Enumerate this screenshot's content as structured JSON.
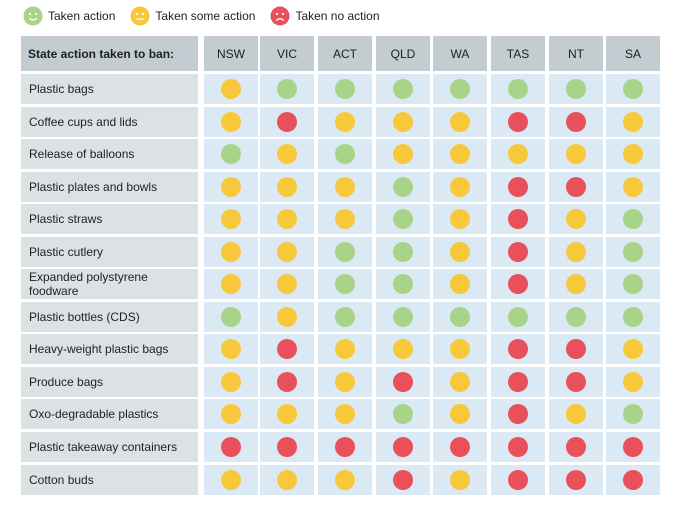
{
  "colors": {
    "green": "#a8d48a",
    "yellow": "#f7c93a",
    "red": "#e8505b",
    "header_bg": "#c3ccd0",
    "label_bg": "#dce1e3",
    "cell_bg": "#dbe9f5"
  },
  "legend": [
    {
      "key": "G",
      "label": "Taken action",
      "icon": "smiley-face-icon"
    },
    {
      "key": "Y",
      "label": "Taken some action",
      "icon": "neutral-face-icon"
    },
    {
      "key": "R",
      "label": "Taken no action",
      "icon": "sad-face-icon"
    }
  ],
  "chart_data": {
    "type": "table",
    "header_label": "State action taken to ban:",
    "columns": [
      "NSW",
      "VIC",
      "ACT",
      "QLD",
      "WA",
      "TAS",
      "NT",
      "SA"
    ],
    "rows": [
      {
        "label": "Plastic bags",
        "values": [
          "Y",
          "G",
          "G",
          "G",
          "G",
          "G",
          "G",
          "G"
        ]
      },
      {
        "label": "Coffee cups and lids",
        "values": [
          "Y",
          "R",
          "Y",
          "Y",
          "Y",
          "R",
          "R",
          "Y"
        ]
      },
      {
        "label": "Release of balloons",
        "values": [
          "G",
          "Y",
          "G",
          "Y",
          "Y",
          "Y",
          "Y",
          "Y"
        ]
      },
      {
        "label": "Plastic plates and bowls",
        "values": [
          "Y",
          "Y",
          "Y",
          "G",
          "Y",
          "R",
          "R",
          "Y"
        ]
      },
      {
        "label": "Plastic straws",
        "values": [
          "Y",
          "Y",
          "Y",
          "G",
          "Y",
          "R",
          "Y",
          "G"
        ]
      },
      {
        "label": "Plastic cutlery",
        "values": [
          "Y",
          "Y",
          "G",
          "G",
          "Y",
          "R",
          "Y",
          "G"
        ]
      },
      {
        "label": "Expanded polystyrene foodware",
        "values": [
          "Y",
          "Y",
          "G",
          "G",
          "Y",
          "R",
          "Y",
          "G"
        ]
      },
      {
        "label": "Plastic bottles (CDS)",
        "values": [
          "G",
          "Y",
          "G",
          "G",
          "G",
          "G",
          "G",
          "G"
        ]
      },
      {
        "label": "Heavy-weight plastic bags",
        "values": [
          "Y",
          "R",
          "Y",
          "Y",
          "Y",
          "R",
          "R",
          "Y"
        ]
      },
      {
        "label": "Produce bags",
        "values": [
          "Y",
          "R",
          "Y",
          "R",
          "Y",
          "R",
          "R",
          "Y"
        ]
      },
      {
        "label": "Oxo-degradable plastics",
        "values": [
          "Y",
          "Y",
          "Y",
          "G",
          "Y",
          "R",
          "Y",
          "G"
        ]
      },
      {
        "label": "Plastic takeaway containers",
        "values": [
          "R",
          "R",
          "R",
          "R",
          "R",
          "R",
          "R",
          "R"
        ]
      },
      {
        "label": "Cotton buds",
        "values": [
          "Y",
          "Y",
          "Y",
          "R",
          "Y",
          "R",
          "R",
          "R"
        ]
      }
    ]
  }
}
